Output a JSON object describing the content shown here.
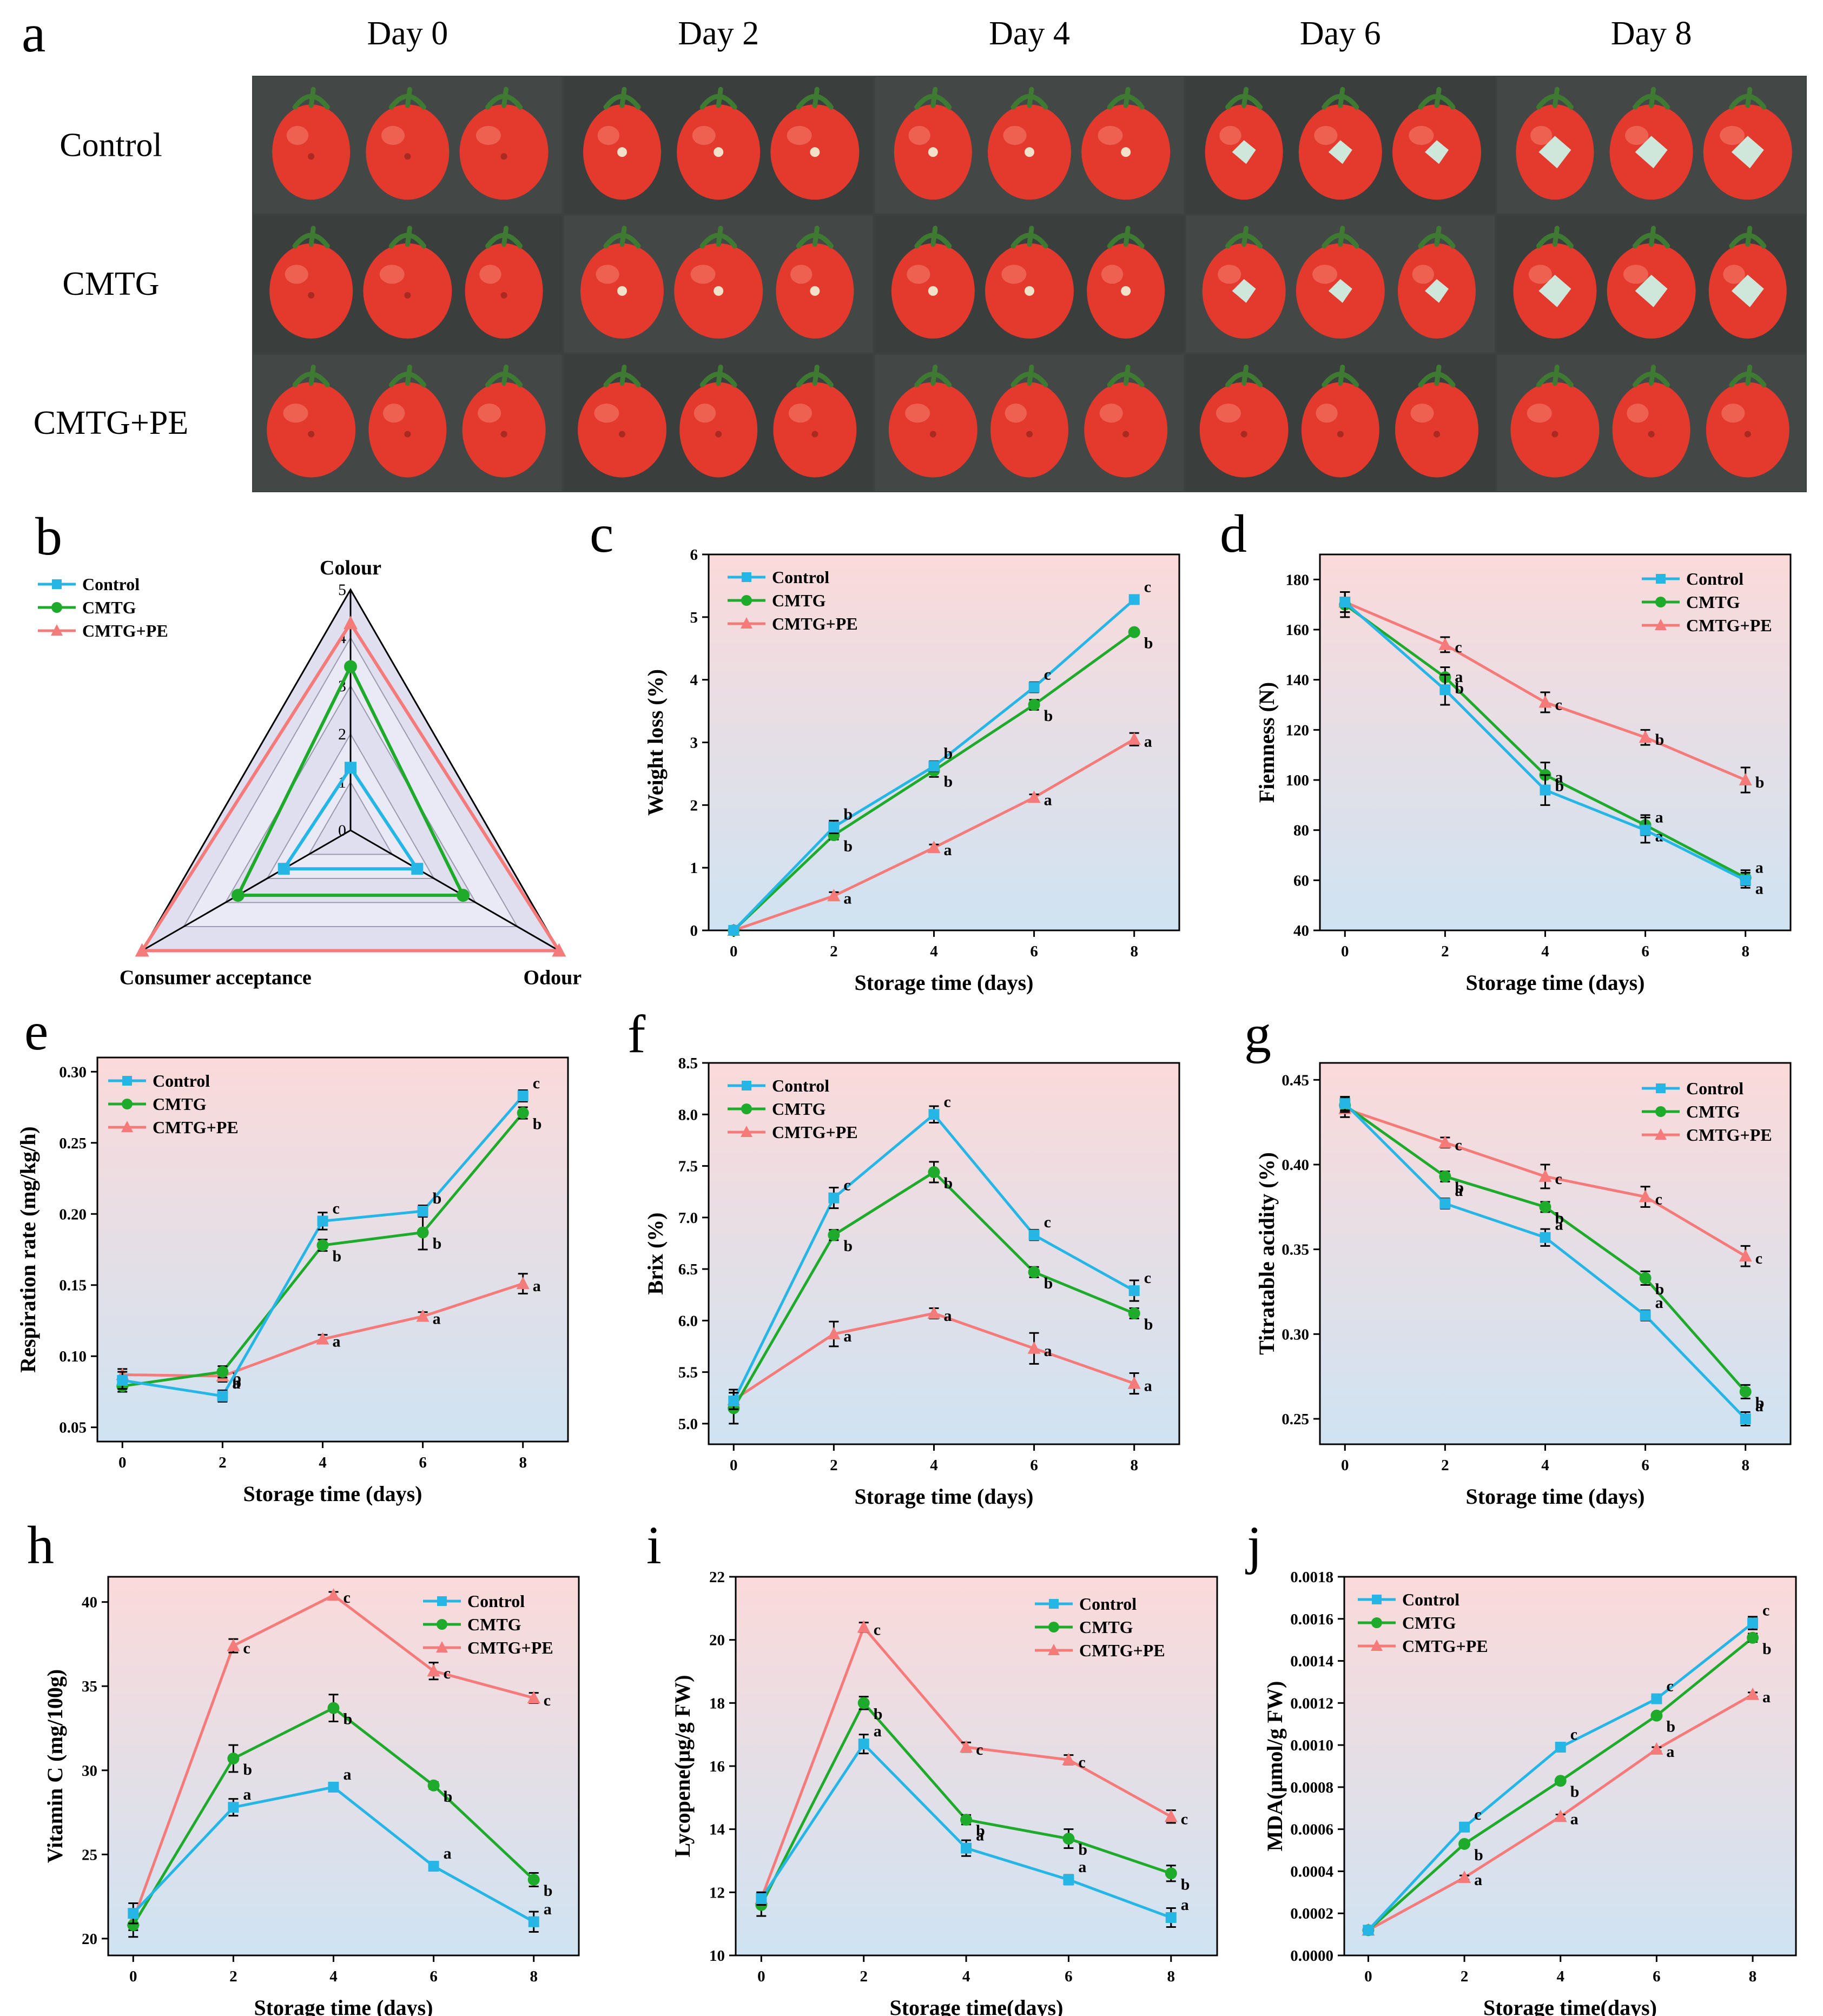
{
  "photo_panel": {
    "letter": "a",
    "columns": [
      "Day 0",
      "Day 2",
      "Day 4",
      "Day 6",
      "Day 8"
    ],
    "rows": [
      "Control",
      "CMTG",
      "CMTG+PE"
    ],
    "colors": {
      "background": "#3d4240",
      "fruit": "#e4392d",
      "highlight": "#f6836f",
      "stem": "#3f7a32",
      "mould": "#cfe7da"
    },
    "fruit_icon": "tomato-icon",
    "mould_icon": "mould-spot-icon"
  },
  "legend": [
    "Control",
    "CMTG",
    "CMTG+PE"
  ],
  "colors": {
    "Control": "#25b6e6",
    "CMTG": "#1eaa2a",
    "CMTG+PE": "#f57a7a",
    "bg_top": "#fbdada",
    "bg_bottom": "#cfe3f2"
  },
  "chart_data": [
    {
      "id": "b",
      "letter": "b",
      "type": "radar",
      "axes": [
        "Colour",
        "Odour",
        "Consumer acceptance"
      ],
      "ticks": [
        "0",
        "1",
        "2",
        "3",
        "4",
        "5"
      ],
      "rmax": 5,
      "series": [
        {
          "name": "Control",
          "values": [
            1.3,
            1.6,
            1.6
          ]
        },
        {
          "name": "CMTG",
          "values": [
            3.4,
            2.7,
            2.7
          ]
        },
        {
          "name": "CMTG+PE",
          "values": [
            4.3,
            5.0,
            5.0
          ]
        }
      ]
    },
    {
      "id": "c",
      "letter": "c",
      "type": "line",
      "xlabel": "Storage time (days)",
      "ylabel": "Weight loss (%)",
      "x": [
        0,
        2,
        4,
        6,
        8
      ],
      "xticks": [
        "0",
        "2",
        "4",
        "6",
        "8"
      ],
      "ylim": [
        0,
        6
      ],
      "yticks": [
        "0",
        "1",
        "2",
        "3",
        "4",
        "5",
        "6"
      ],
      "series": [
        {
          "name": "Control",
          "values": [
            0,
            1.65,
            2.62,
            3.88,
            5.28
          ],
          "err": [
            0.02,
            0.1,
            0.08,
            0.08,
            0.05
          ],
          "letters": [
            "",
            "b",
            "b",
            "c",
            "c"
          ]
        },
        {
          "name": "CMTG",
          "values": [
            0,
            1.52,
            2.55,
            3.6,
            4.76
          ],
          "err": [
            0.02,
            0.07,
            0.1,
            0.08,
            0.04
          ],
          "letters": [
            "",
            "b",
            "b",
            "b",
            "b"
          ]
        },
        {
          "name": "CMTG+PE",
          "values": [
            0,
            0.55,
            1.32,
            2.12,
            3.05
          ],
          "err": [
            0.02,
            0.06,
            0.05,
            0.05,
            0.1
          ],
          "letters": [
            "",
            "a",
            "a",
            "a",
            "a"
          ]
        }
      ]
    },
    {
      "id": "d",
      "letter": "d",
      "type": "line",
      "xlabel": "Storage time (days)",
      "ylabel": "Fiemness (N)",
      "x": [
        0,
        2,
        4,
        6,
        8
      ],
      "xticks": [
        "0",
        "2",
        "4",
        "6",
        "8"
      ],
      "ylim": [
        40,
        190
      ],
      "yticks": [
        "40",
        "60",
        "80",
        "100",
        "120",
        "140",
        "160",
        "180"
      ],
      "series": [
        {
          "name": "Control",
          "values": [
            171,
            136,
            96,
            80,
            60
          ],
          "err": [
            4,
            6,
            6,
            5,
            3
          ],
          "letters": [
            "",
            "a",
            "a",
            "a",
            "a"
          ]
        },
        {
          "name": "CMTG",
          "values": [
            170,
            141,
            102,
            82,
            61
          ],
          "err": [
            5,
            4,
            5,
            4,
            3
          ],
          "letters": [
            "",
            "b",
            "b",
            "a",
            "a"
          ]
        },
        {
          "name": "CMTG+PE",
          "values": [
            171,
            154,
            131,
            117,
            100
          ],
          "err": [
            4,
            3,
            4,
            3,
            5
          ],
          "letters": [
            "",
            "c",
            "c",
            "b",
            "b"
          ]
        }
      ]
    },
    {
      "id": "e",
      "letter": "e",
      "type": "line",
      "xlabel": "Storage time (days)",
      "ylabel": "Respiration rate (mg/kg/h)",
      "x": [
        0,
        2,
        4,
        6,
        8
      ],
      "xticks": [
        "0",
        "2",
        "4",
        "6",
        "8"
      ],
      "ylim": [
        0.04,
        0.31
      ],
      "yticks": [
        "0.05",
        "0.10",
        "0.15",
        "0.20",
        "0.25",
        "0.30"
      ],
      "series": [
        {
          "name": "Control",
          "values": [
            0.083,
            0.072,
            0.195,
            0.202,
            0.283
          ],
          "err": [
            0.006,
            0.004,
            0.006,
            0.004,
            0.004
          ],
          "letters": [
            "",
            "a",
            "c",
            "b",
            "c"
          ]
        },
        {
          "name": "CMTG",
          "values": [
            0.079,
            0.089,
            0.178,
            0.187,
            0.271
          ],
          "err": [
            0.004,
            0.004,
            0.004,
            0.012,
            0.004
          ],
          "letters": [
            "",
            "b",
            "b",
            "b",
            "b"
          ]
        },
        {
          "name": "CMTG+PE",
          "values": [
            0.087,
            0.086,
            0.112,
            0.128,
            0.151
          ],
          "err": [
            0.004,
            0.004,
            0.003,
            0.003,
            0.007
          ],
          "letters": [
            "",
            "b",
            "a",
            "a",
            "a"
          ]
        }
      ]
    },
    {
      "id": "f",
      "letter": "f",
      "type": "line",
      "xlabel": "Storage time (days)",
      "ylabel": "Brix (%)",
      "x": [
        0,
        2,
        4,
        6,
        8
      ],
      "xticks": [
        "0",
        "2",
        "4",
        "6",
        "8"
      ],
      "ylim": [
        4.8,
        8.5
      ],
      "yticks": [
        "5.0",
        "5.5",
        "6.0",
        "6.5",
        "7.0",
        "7.5",
        "8.0",
        "8.5"
      ],
      "series": [
        {
          "name": "Control",
          "values": [
            5.22,
            7.19,
            8.0,
            6.83,
            6.29
          ],
          "err": [
            0.08,
            0.1,
            0.08,
            0.05,
            0.1
          ],
          "letters": [
            "",
            "c",
            "c",
            "c",
            "c"
          ]
        },
        {
          "name": "CMTG",
          "values": [
            5.15,
            6.83,
            7.44,
            6.47,
            6.07
          ],
          "err": [
            0.15,
            0.05,
            0.1,
            0.05,
            0.05
          ],
          "letters": [
            "",
            "b",
            "b",
            "b",
            "b"
          ]
        },
        {
          "name": "CMTG+PE",
          "values": [
            5.23,
            5.87,
            6.07,
            5.73,
            5.39
          ],
          "err": [
            0.1,
            0.12,
            0.05,
            0.15,
            0.1
          ],
          "letters": [
            "",
            "a",
            "a",
            "a",
            "a"
          ]
        }
      ]
    },
    {
      "id": "g",
      "letter": "g",
      "type": "line",
      "xlabel": "Storage time (days)",
      "ylabel": "Titratable acidity (%)",
      "x": [
        0,
        2,
        4,
        6,
        8
      ],
      "xticks": [
        "0",
        "2",
        "4",
        "6",
        "8"
      ],
      "ylim": [
        0.235,
        0.46
      ],
      "yticks": [
        "0.25",
        "0.30",
        "0.35",
        "0.40",
        "0.45"
      ],
      "series": [
        {
          "name": "Control",
          "values": [
            0.436,
            0.377,
            0.357,
            0.311,
            0.25
          ],
          "err": [
            0.004,
            0.003,
            0.005,
            0.003,
            0.004
          ],
          "letters": [
            "",
            "a",
            "a",
            "a",
            "a"
          ]
        },
        {
          "name": "CMTG",
          "values": [
            0.435,
            0.393,
            0.375,
            0.333,
            0.266
          ],
          "err": [
            0.004,
            0.003,
            0.003,
            0.004,
            0.004
          ],
          "letters": [
            "",
            "b",
            "b",
            "b",
            "b"
          ]
        },
        {
          "name": "CMTG+PE",
          "values": [
            0.433,
            0.413,
            0.393,
            0.381,
            0.346
          ],
          "err": [
            0.005,
            0.003,
            0.007,
            0.006,
            0.006
          ],
          "letters": [
            "",
            "c",
            "c",
            "c",
            "c"
          ]
        }
      ]
    },
    {
      "id": "h",
      "letter": "h",
      "type": "line",
      "xlabel": "Storage time (days)",
      "ylabel": "Vitamin C (mg/100g)",
      "x": [
        0,
        2,
        4,
        6,
        8
      ],
      "xticks": [
        "0",
        "2",
        "4",
        "6",
        "8"
      ],
      "ylim": [
        19,
        41.5
      ],
      "yticks": [
        "20",
        "25",
        "30",
        "35",
        "40"
      ],
      "series": [
        {
          "name": "Control",
          "values": [
            21.5,
            27.8,
            29.0,
            24.3,
            21.0
          ],
          "err": [
            0.6,
            0.5,
            0.2,
            0.2,
            0.6
          ],
          "letters": [
            "",
            "a",
            "a",
            "a",
            "a"
          ]
        },
        {
          "name": "CMTG",
          "values": [
            20.8,
            30.7,
            33.7,
            29.1,
            23.5
          ],
          "err": [
            0.7,
            0.8,
            0.8,
            0.2,
            0.4
          ],
          "letters": [
            "",
            "b",
            "b",
            "b",
            "b"
          ]
        },
        {
          "name": "CMTG+PE",
          "values": [
            21.1,
            37.4,
            40.4,
            35.9,
            34.3
          ],
          "err": [
            0.6,
            0.4,
            0.2,
            0.5,
            0.3
          ],
          "letters": [
            "",
            "c",
            "c",
            "c",
            "c"
          ]
        }
      ]
    },
    {
      "id": "i",
      "letter": "i",
      "type": "line",
      "xlabel": "Storage time(days)",
      "ylabel": "Lycopene(μg/g FW)",
      "x": [
        0,
        2,
        4,
        6,
        8
      ],
      "xticks": [
        "0",
        "2",
        "4",
        "6",
        "8"
      ],
      "ylim": [
        10,
        22
      ],
      "yticks": [
        "10",
        "12",
        "14",
        "16",
        "18",
        "20",
        "22"
      ],
      "series": [
        {
          "name": "Control",
          "values": [
            11.8,
            16.7,
            13.4,
            12.4,
            11.2
          ],
          "err": [
            0.2,
            0.3,
            0.25,
            0.15,
            0.3
          ],
          "letters": [
            "",
            "a",
            "a",
            "a",
            "a"
          ]
        },
        {
          "name": "CMTG",
          "values": [
            11.6,
            18.0,
            14.3,
            13.7,
            12.6
          ],
          "err": [
            0.35,
            0.2,
            0.15,
            0.3,
            0.25
          ],
          "letters": [
            "",
            "b",
            "b",
            "b",
            "b"
          ]
        },
        {
          "name": "CMTG+PE",
          "values": [
            11.8,
            20.4,
            16.6,
            16.2,
            14.4
          ],
          "err": [
            0.2,
            0.15,
            0.15,
            0.15,
            0.2
          ],
          "letters": [
            "",
            "c",
            "c",
            "c",
            "c"
          ]
        }
      ]
    },
    {
      "id": "j",
      "letter": "j",
      "type": "line",
      "xlabel": "Storage time(days)",
      "ylabel": "MDA(μmol/g FW)",
      "x": [
        0,
        2,
        4,
        6,
        8
      ],
      "xticks": [
        "0",
        "2",
        "4",
        "6",
        "8"
      ],
      "ylim": [
        0,
        0.0018
      ],
      "yticks": [
        "0.0000",
        "0.0002",
        "0.0004",
        "0.0006",
        "0.0008",
        "0.0010",
        "0.0012",
        "0.0014",
        "0.0016",
        "0.0018"
      ],
      "series": [
        {
          "name": "Control",
          "values": [
            0.00012,
            0.00061,
            0.00099,
            0.00122,
            0.00158
          ],
          "err": [
            1e-05,
            1e-05,
            2e-05,
            1e-05,
            3e-05
          ],
          "letters": [
            "",
            "c",
            "c",
            "c",
            "c"
          ]
        },
        {
          "name": "CMTG",
          "values": [
            0.00012,
            0.00053,
            0.00083,
            0.00114,
            0.00151
          ],
          "err": [
            1e-05,
            1e-05,
            1e-05,
            1e-05,
            2e-05
          ],
          "letters": [
            "",
            "b",
            "b",
            "b",
            "b"
          ]
        },
        {
          "name": "CMTG+PE",
          "values": [
            0.00012,
            0.00037,
            0.00066,
            0.00098,
            0.00124
          ],
          "err": [
            1e-05,
            1e-05,
            1e-05,
            1e-05,
            1e-05
          ],
          "letters": [
            "",
            "a",
            "a",
            "a",
            "a"
          ]
        }
      ]
    }
  ]
}
